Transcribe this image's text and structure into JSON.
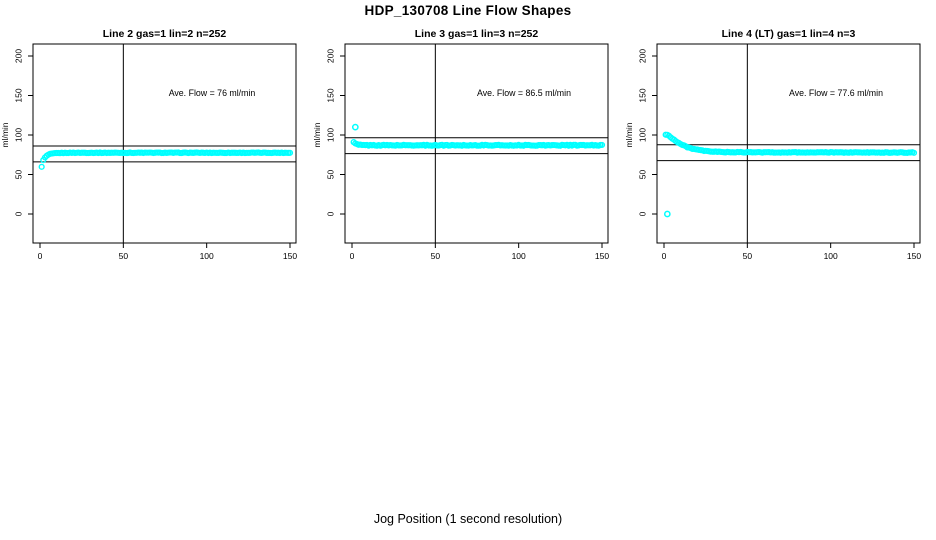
{
  "page": {
    "title": "HDP_130708  Line Flow Shapes",
    "xlabel": "Jog Position (1 second resolution)",
    "background": "#ffffff",
    "text_color": "#000000"
  },
  "axes": {
    "x_ticks": [
      0,
      50,
      100,
      150
    ],
    "y_ticks": [
      0,
      50,
      100,
      150,
      200
    ],
    "y_label": "ml/min",
    "x_range": [
      0,
      150
    ],
    "y_range": [
      0,
      200
    ],
    "grid": "off"
  },
  "marker": {
    "shape": "open-circle",
    "color": "#00ffff"
  },
  "chart_data": [
    {
      "type": "scatter",
      "title": "Line 2 gas=1 lin=2 n=252",
      "annotation": "Ave. Flow =  76  ml/min",
      "ave_flow_ml_min": 76,
      "ylabel": "ml/min",
      "ref_lines": {
        "vertical_x": 50,
        "horizontal_y": [
          86,
          66
        ]
      },
      "series": [
        {
          "name": "flow",
          "x_step": 1,
          "x_end": 150,
          "jitter": 0.35,
          "keypoints": [
            [
              1,
              60
            ],
            [
              2,
              68
            ],
            [
              3,
              71.5
            ],
            [
              4,
              73.5
            ],
            [
              5,
              75
            ],
            [
              6,
              75.8
            ],
            [
              8,
              76.6
            ],
            [
              10,
              77
            ],
            [
              15,
              77.4
            ],
            [
              20,
              77.5
            ],
            [
              150,
              77.5
            ]
          ]
        }
      ],
      "outliers": []
    },
    {
      "type": "scatter",
      "title": "Line 3 gas=1 lin=3 n=252",
      "annotation": "Ave. Flow =  86.5  ml/min",
      "ave_flow_ml_min": 86.5,
      "ylabel": "ml/min",
      "ref_lines": {
        "vertical_x": 50,
        "horizontal_y": [
          96.5,
          76.5
        ]
      },
      "series": [
        {
          "name": "flow",
          "x_step": 1,
          "x_end": 150,
          "jitter": 0.6,
          "keypoints": [
            [
              1,
              91
            ],
            [
              2,
              89
            ],
            [
              3,
              88.2
            ],
            [
              4,
              87.6
            ],
            [
              6,
              87.2
            ],
            [
              10,
              87
            ],
            [
              150,
              87
            ]
          ]
        }
      ],
      "outliers": [
        [
          2,
          110
        ]
      ]
    },
    {
      "type": "scatter",
      "title": "Line 4 (LT) gas=1 lin=4 n=3",
      "annotation": "Ave. Flow =  77.6  ml/min",
      "ave_flow_ml_min": 77.6,
      "ylabel": "ml/min",
      "ref_lines": {
        "vertical_x": 50,
        "horizontal_y": [
          87.6,
          67.6
        ]
      },
      "series": [
        {
          "name": "flow",
          "x_step": 1,
          "x_end": 150,
          "jitter": 0.45,
          "keypoints": [
            [
              1,
              100.5
            ],
            [
              2,
              100
            ],
            [
              3,
              99
            ],
            [
              4,
              97.5
            ],
            [
              6,
              94
            ],
            [
              8,
              91
            ],
            [
              10,
              88.5
            ],
            [
              13,
              85.5
            ],
            [
              16,
              83.3
            ],
            [
              20,
              81.2
            ],
            [
              25,
              79.6
            ],
            [
              30,
              78.8
            ],
            [
              40,
              78.2
            ],
            [
              60,
              78
            ],
            [
              100,
              77.9
            ],
            [
              150,
              77.8
            ]
          ]
        }
      ],
      "outliers": [
        [
          2,
          0
        ]
      ]
    }
  ]
}
